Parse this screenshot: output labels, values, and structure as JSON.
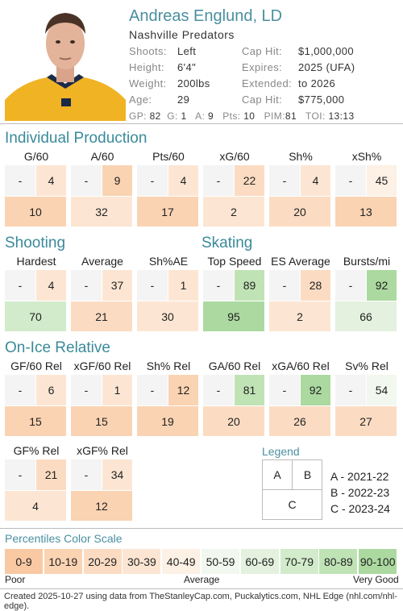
{
  "player": {
    "name": "Andreas Englund, LD",
    "team": "Nashville Predators",
    "info_left": [
      {
        "label": "Shoots:",
        "value": "Left"
      },
      {
        "label": "Height:",
        "value": "6'4\""
      },
      {
        "label": "Weight:",
        "value": "200lbs"
      },
      {
        "label": "Age:",
        "value": "29"
      }
    ],
    "info_right": [
      {
        "label": "Cap Hit:",
        "value": "$1,000,000"
      },
      {
        "label": "Expires:",
        "value": "2025 (UFA)"
      },
      {
        "label": "Extended:",
        "value": "to 2026"
      },
      {
        "label": "Cap Hit:",
        "value": "$775,000"
      }
    ],
    "stats": [
      {
        "label": "GP:",
        "value": "82"
      },
      {
        "label": "G:",
        "value": "1"
      },
      {
        "label": "A:",
        "value": "9"
      },
      {
        "label": "Pts:",
        "value": "10"
      },
      {
        "label": "PIM:",
        "value": "81"
      },
      {
        "label": "TOI:",
        "value": "13:13"
      }
    ]
  },
  "sections": {
    "production": "Individual Production",
    "shooting": "Shooting",
    "skating": "Skating",
    "onice": "On-Ice Relative"
  },
  "metrics": [
    {
      "label": "G/60",
      "a": "-",
      "b": "4",
      "c": "10",
      "pb": 30,
      "pc": 10
    },
    {
      "label": "A/60",
      "a": "-",
      "b": "9",
      "c": "32",
      "pb": 10,
      "pc": 30
    },
    {
      "label": "Pts/60",
      "a": "-",
      "b": "4",
      "c": "17",
      "pb": 30,
      "pc": 10
    },
    {
      "label": "xG/60",
      "a": "-",
      "b": "22",
      "c": "2",
      "pb": 20,
      "pc": 30
    },
    {
      "label": "Sh%",
      "a": "-",
      "b": "4",
      "c": "20",
      "pb": 30,
      "pc": 20
    },
    {
      "label": "xSh%",
      "a": "-",
      "b": "45",
      "c": "13",
      "pb": 40,
      "pc": 10
    },
    {
      "label": "Hardest",
      "a": "-",
      "b": "4",
      "c": "70",
      "pb": 30,
      "pc": 70
    },
    {
      "label": "Average",
      "a": "-",
      "b": "37",
      "c": "21",
      "pb": 30,
      "pc": 20
    },
    {
      "label": "Sh%AE",
      "a": "-",
      "b": "1",
      "c": "30",
      "pb": 30,
      "pc": 30
    },
    {
      "label": "Top Speed",
      "a": "-",
      "b": "89",
      "c": "95",
      "pb": 80,
      "pc": 90
    },
    {
      "label": "ES Average",
      "a": "-",
      "b": "28",
      "c": "2",
      "pb": 20,
      "pc": 30
    },
    {
      "label": "Bursts/mi",
      "a": "-",
      "b": "92",
      "c": "66",
      "pb": 90,
      "pc": 60
    },
    {
      "label": "GF/60 Rel",
      "a": "-",
      "b": "6",
      "c": "15",
      "pb": 30,
      "pc": 10
    },
    {
      "label": "xGF/60 Rel",
      "a": "-",
      "b": "1",
      "c": "15",
      "pb": 30,
      "pc": 10
    },
    {
      "label": "Sh% Rel",
      "a": "-",
      "b": "12",
      "c": "19",
      "pb": 10,
      "pc": 10
    },
    {
      "label": "GA/60 Rel",
      "a": "-",
      "b": "81",
      "c": "20",
      "pb": 80,
      "pc": 20
    },
    {
      "label": "xGA/60 Rel",
      "a": "-",
      "b": "92",
      "c": "26",
      "pb": 90,
      "pc": 20
    },
    {
      "label": "Sv% Rel",
      "a": "-",
      "b": "54",
      "c": "27",
      "pb": 50,
      "pc": 20
    },
    {
      "label": "GF% Rel",
      "a": "-",
      "b": "21",
      "c": "4",
      "pb": 20,
      "pc": 30
    },
    {
      "label": "xGF% Rel",
      "a": "-",
      "b": "34",
      "c": "12",
      "pb": 30,
      "pc": 10
    }
  ],
  "legend": {
    "title": "Legend",
    "a": "A",
    "b": "B",
    "c": "C",
    "entries": [
      "A - 2021-22",
      "B - 2022-23",
      "C - 2023-24"
    ]
  },
  "scale": {
    "title": "Percentiles Color Scale",
    "bins": [
      "0-9",
      "10-19",
      "20-29",
      "30-39",
      "40-49",
      "50-59",
      "60-69",
      "70-79",
      "80-89",
      "90-100"
    ],
    "colors": [
      "#f9c9a4",
      "#fad3b3",
      "#fbdcc3",
      "#fce6d3",
      "#fdf0e5",
      "#f2f7ef",
      "#e3f1de",
      "#d2ebcb",
      "#c0e3b6",
      "#abd9a0"
    ],
    "poor": "Poor",
    "average": "Average",
    "good": "Very Good"
  },
  "footer": "Created 2025-10-27 using data from TheStanleyCap.com, Puckalytics.com, NHL Edge (nhl.com/nhl-edge)."
}
